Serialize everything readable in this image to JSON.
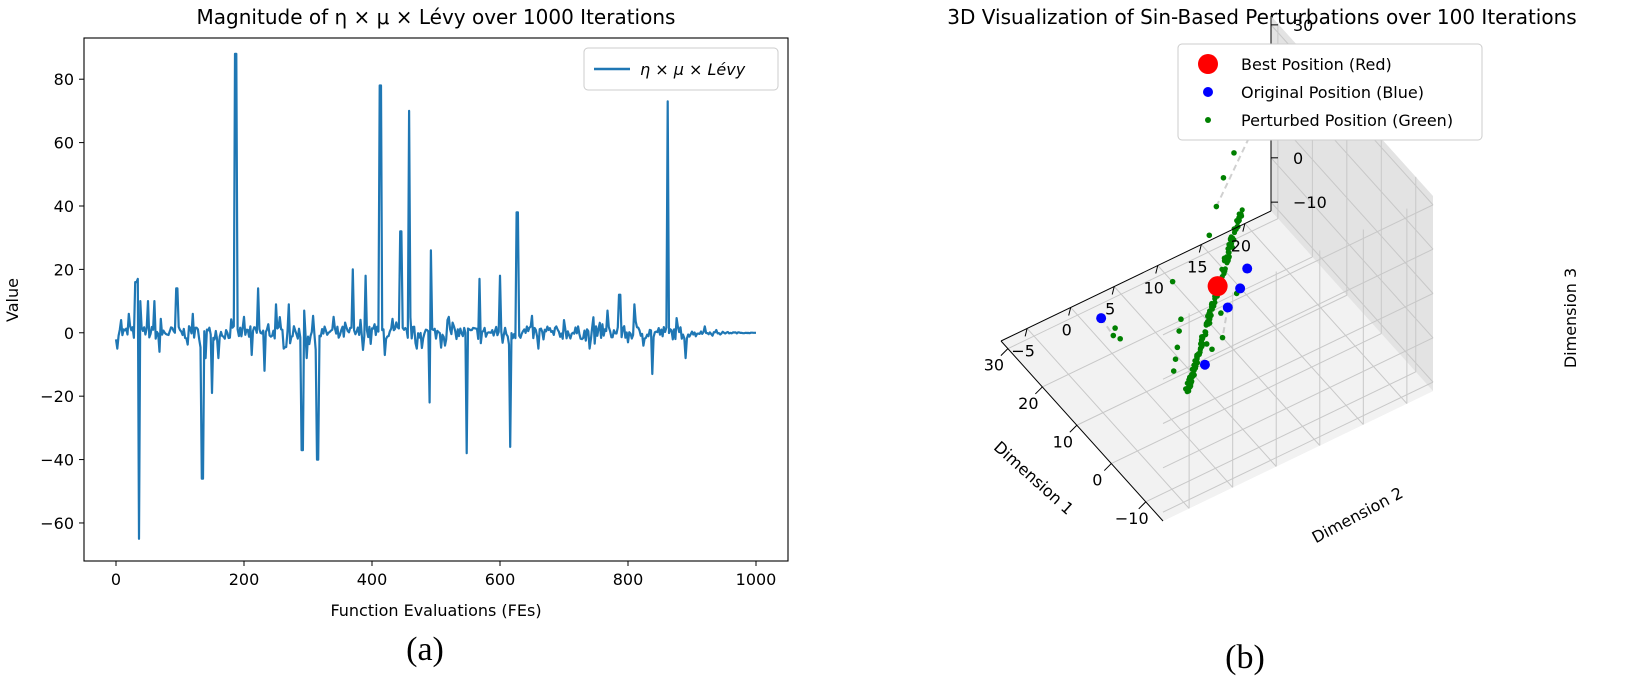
{
  "panels": [
    {
      "caption": "(a)"
    },
    {
      "caption": "(b)"
    }
  ],
  "chart_data": [
    {
      "type": "line",
      "title": "Magnitude of η × μ × Lévy  over 1000 Iterations",
      "xlabel": "Function Evaluations (FEs)",
      "ylabel": "Value",
      "xlim": [
        -50,
        1050
      ],
      "ylim": [
        -72,
        93
      ],
      "xticks": [
        0,
        200,
        400,
        600,
        800,
        1000
      ],
      "yticks": [
        -60,
        -40,
        -20,
        0,
        20,
        40,
        60,
        80
      ],
      "legend": {
        "label": "η × μ × Lévy",
        "location": "upper right"
      },
      "color": "#1f77b4",
      "noise_baseline": {
        "x_range": [
          0,
          1000
        ],
        "typical_amplitude": [
          -3,
          3
        ],
        "settles_to": 0
      },
      "spikes": [
        {
          "x": 2,
          "y": -5
        },
        {
          "x": 8,
          "y": 4
        },
        {
          "x": 20,
          "y": 6
        },
        {
          "x": 31,
          "y": 16
        },
        {
          "x": 33,
          "y": 17
        },
        {
          "x": 35,
          "y": -65
        },
        {
          "x": 38,
          "y": 10
        },
        {
          "x": 50,
          "y": 10
        },
        {
          "x": 60,
          "y": 10
        },
        {
          "x": 68,
          "y": -6
        },
        {
          "x": 95,
          "y": 14
        },
        {
          "x": 120,
          "y": 6
        },
        {
          "x": 135,
          "y": -46
        },
        {
          "x": 140,
          "y": -8
        },
        {
          "x": 150,
          "y": -19
        },
        {
          "x": 160,
          "y": -8
        },
        {
          "x": 187,
          "y": 88
        },
        {
          "x": 200,
          "y": 5
        },
        {
          "x": 212,
          "y": -7
        },
        {
          "x": 222,
          "y": 14
        },
        {
          "x": 232,
          "y": -12
        },
        {
          "x": 250,
          "y": 9
        },
        {
          "x": 270,
          "y": 9
        },
        {
          "x": 291,
          "y": -37
        },
        {
          "x": 293,
          "y": 7
        },
        {
          "x": 298,
          "y": -8
        },
        {
          "x": 315,
          "y": -40
        },
        {
          "x": 340,
          "y": 5
        },
        {
          "x": 370,
          "y": 20
        },
        {
          "x": 390,
          "y": 18
        },
        {
          "x": 413,
          "y": 78
        },
        {
          "x": 420,
          "y": -7
        },
        {
          "x": 445,
          "y": 32
        },
        {
          "x": 458,
          "y": 70
        },
        {
          "x": 470,
          "y": -5
        },
        {
          "x": 490,
          "y": -22
        },
        {
          "x": 492,
          "y": 26
        },
        {
          "x": 520,
          "y": 5
        },
        {
          "x": 548,
          "y": -38
        },
        {
          "x": 568,
          "y": 17
        },
        {
          "x": 600,
          "y": 18
        },
        {
          "x": 616,
          "y": -36
        },
        {
          "x": 627,
          "y": 38
        },
        {
          "x": 660,
          "y": -5
        },
        {
          "x": 700,
          "y": 4
        },
        {
          "x": 740,
          "y": -5
        },
        {
          "x": 768,
          "y": 7
        },
        {
          "x": 787,
          "y": 12
        },
        {
          "x": 800,
          "y": -3
        },
        {
          "x": 810,
          "y": 9
        },
        {
          "x": 838,
          "y": -13
        },
        {
          "x": 862,
          "y": 73
        },
        {
          "x": 890,
          "y": -8
        },
        {
          "x": 920,
          "y": 2
        }
      ]
    },
    {
      "type": "scatter",
      "title": "3D Visualization of Sin-Based Perturbations over 100 Iterations",
      "xlabel": "Dimension 1",
      "ylabel": "Dimension 2",
      "zlabel": "Dimension 3",
      "xlim": [
        -15,
        32
      ],
      "ylim": [
        -8,
        23
      ],
      "zlim": [
        -12,
        32
      ],
      "xticks": [
        -10,
        0,
        10,
        20,
        30
      ],
      "yticks": [
        -5,
        0,
        5,
        10,
        15,
        20
      ],
      "zticks": [
        -10,
        0,
        10,
        20,
        30
      ],
      "grid": true,
      "legend": {
        "location": "top",
        "entries": [
          {
            "label": "Best Position (Red)",
            "color": "#ff0000"
          },
          {
            "label": "Original Position (Blue)",
            "color": "#0000ff"
          },
          {
            "label": "Perturbed Position (Green)",
            "color": "#008000"
          }
        ]
      },
      "series": [
        {
          "name": "Best Position (Red)",
          "color": "#ff0000",
          "points": [
            [
              2,
              5,
              14
            ]
          ]
        },
        {
          "name": "Original Position (Blue)",
          "color": "#0000ff",
          "points": [
            [
              -12,
              -2,
              15
            ],
            [
              -6,
              3,
              18
            ],
            [
              -2,
              6,
              16
            ],
            [
              1,
              8,
              16
            ],
            [
              8,
              -6,
              12
            ]
          ]
        },
        {
          "name": "Perturbed Position (Green)",
          "color": "#008000",
          "points": [
            [
              -8,
              -4,
              12
            ],
            [
              -6,
              -3,
              12
            ],
            [
              -4,
              -2,
              12
            ],
            [
              -2,
              -1,
              13
            ],
            [
              0,
              0,
              13
            ],
            [
              -10,
              -1,
              17
            ],
            [
              -9,
              0,
              14
            ],
            [
              -7,
              2,
              13
            ],
            [
              -4,
              3,
              15
            ],
            [
              -1,
              6,
              14
            ],
            [
              5,
              -5,
              9
            ],
            [
              7,
              -5,
              8
            ],
            [
              9,
              -4,
              7
            ],
            [
              10,
              3,
              10
            ],
            [
              12,
              8,
              14
            ],
            [
              15,
              10,
              16
            ],
            [
              18,
              12,
              18
            ],
            [
              20,
              14,
              20
            ],
            [
              23,
              17,
              22
            ],
            [
              26,
              20,
              24
            ],
            [
              28,
              23,
              25
            ]
          ]
        }
      ]
    }
  ]
}
